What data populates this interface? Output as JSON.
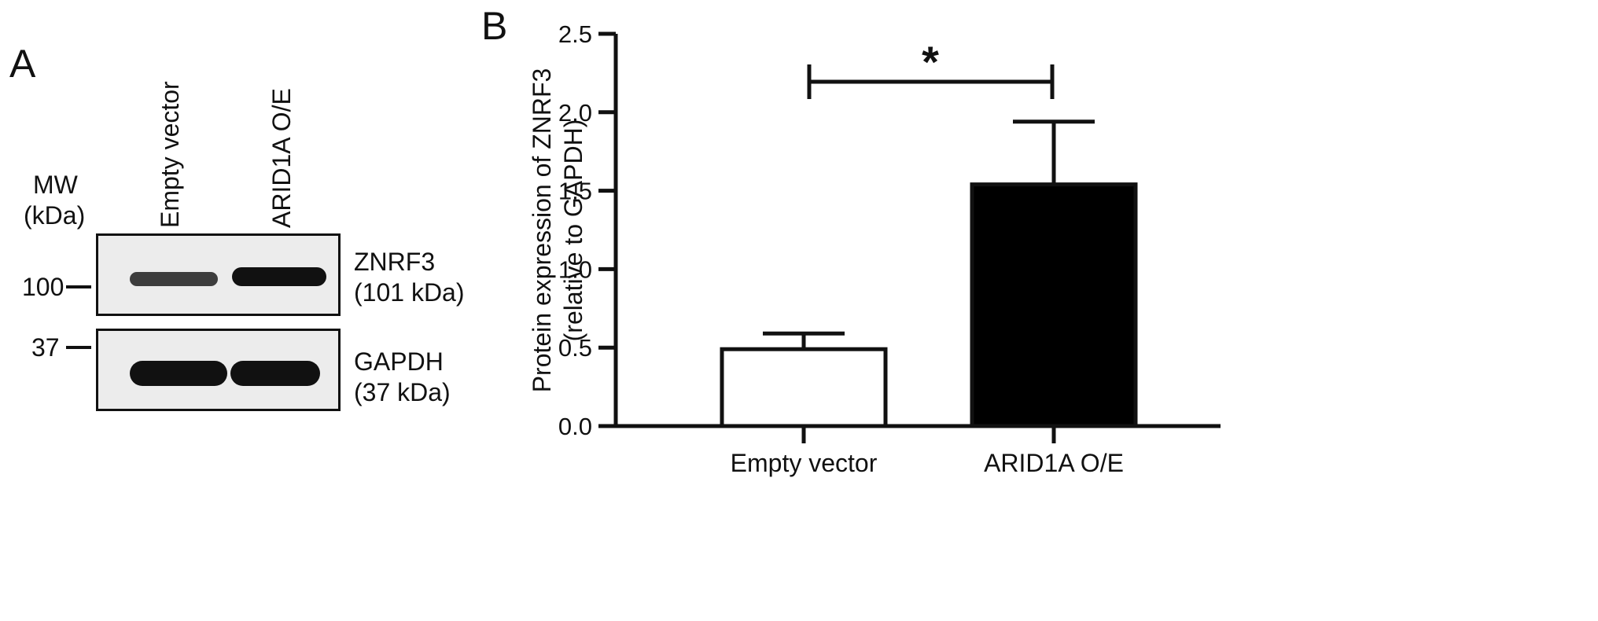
{
  "panel_a": {
    "letter": "A",
    "mw_label_line1": "MW",
    "mw_label_line2": "(kDa)",
    "lanes": [
      "Empty vector",
      "ARID1A O/E"
    ],
    "markers": [
      "100",
      "37"
    ],
    "blots": [
      {
        "name_line1": "ZNRF3",
        "name_line2": "(101 kDa)"
      },
      {
        "name_line1": "GAPDH",
        "name_line2": "(37 kDa)"
      }
    ]
  },
  "chart_data": {
    "type": "bar",
    "panel_letter": "B",
    "categories": [
      "Empty vector",
      "ARID1A O/E"
    ],
    "values": [
      0.49,
      1.54
    ],
    "error": [
      0.1,
      0.4
    ],
    "bar_colors": [
      "#ffffff",
      "#000000"
    ],
    "ylabel_line1": "Protein expression of ZNRF3",
    "ylabel_line2": "(relative to GAPDH)",
    "ylim": [
      0,
      2.5
    ],
    "yticks": [
      "0.0",
      "0.5",
      "1.0",
      "1.5",
      "2.0",
      "2.5"
    ],
    "significance": "*",
    "grid": false
  }
}
